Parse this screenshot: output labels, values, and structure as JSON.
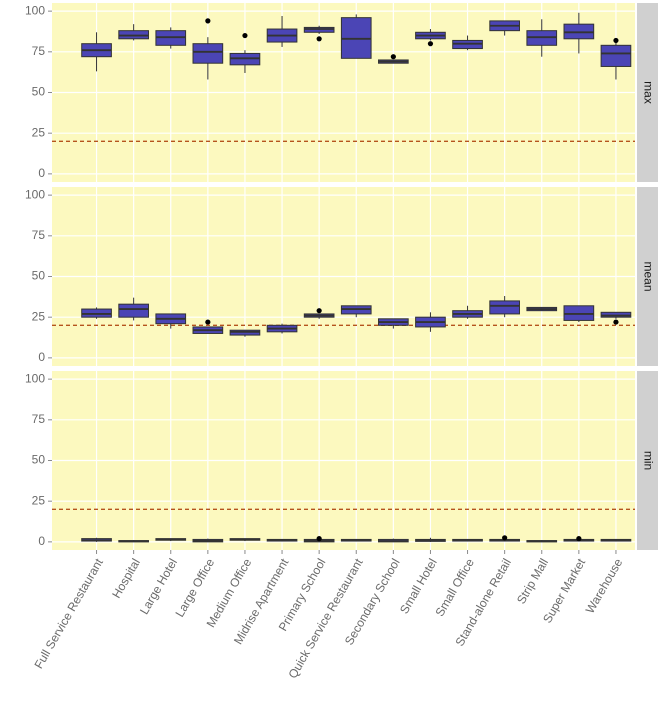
{
  "chart_data": {
    "type": "box",
    "categories": [
      "Full Service Restaurant",
      "Hospital",
      "Large Hotel",
      "Large Office",
      "Medium Office",
      "Midrise Apartment",
      "Primary School",
      "Quick Service Restaurant",
      "Secondary School",
      "Small Hotel",
      "Small Office",
      "Stand-alone Retail",
      "Strip Mall",
      "Super Market",
      "Warehouse"
    ],
    "ylim": [
      -5,
      105
    ],
    "yticks": [
      0,
      25,
      50,
      75,
      100
    ],
    "grid": true,
    "box_color": "#4b45b5",
    "reference_line": 20,
    "reference_color": "#b5541e",
    "facets": [
      {
        "label": "max",
        "boxes": [
          {
            "low": 63,
            "q1": 72,
            "median": 76,
            "q3": 80,
            "high": 87
          },
          {
            "low": 82,
            "q1": 83,
            "median": 85,
            "q3": 88,
            "high": 92
          },
          {
            "low": 77,
            "q1": 79,
            "median": 84,
            "q3": 88,
            "high": 90
          },
          {
            "low": 58,
            "q1": 68,
            "median": 75,
            "q3": 80,
            "high": 84,
            "outliers": [
              94
            ]
          },
          {
            "low": 62,
            "q1": 67,
            "median": 71,
            "q3": 74,
            "high": 76,
            "outliers": [
              85
            ]
          },
          {
            "low": 78,
            "q1": 81,
            "median": 85,
            "q3": 89,
            "high": 97
          },
          {
            "low": 86,
            "q1": 87,
            "median": 89,
            "q3": 90,
            "high": 91,
            "outliers": [
              83
            ]
          },
          {
            "low": 71,
            "q1": 71,
            "median": 83,
            "q3": 96,
            "high": 98
          },
          {
            "low": 68,
            "q1": 68,
            "median": 69,
            "q3": 70,
            "high": 70,
            "outliers": [
              72
            ]
          },
          {
            "low": 82,
            "q1": 83,
            "median": 85,
            "q3": 87,
            "high": 89,
            "outliers": [
              80
            ]
          },
          {
            "low": 76,
            "q1": 77,
            "median": 80,
            "q3": 82,
            "high": 85
          },
          {
            "low": 85,
            "q1": 88,
            "median": 91,
            "q3": 94,
            "high": 94
          },
          {
            "low": 72,
            "q1": 79,
            "median": 84,
            "q3": 88,
            "high": 95
          },
          {
            "low": 74,
            "q1": 83,
            "median": 87,
            "q3": 92,
            "high": 99
          },
          {
            "low": 58,
            "q1": 66,
            "median": 74,
            "q3": 79,
            "high": 81,
            "outliers": [
              82
            ]
          }
        ]
      },
      {
        "label": "mean",
        "boxes": [
          {
            "low": 24,
            "q1": 25,
            "median": 27,
            "q3": 30,
            "high": 31
          },
          {
            "low": 23,
            "q1": 25,
            "median": 30,
            "q3": 33,
            "high": 37
          },
          {
            "low": 18,
            "q1": 21,
            "median": 24,
            "q3": 27,
            "high": 27
          },
          {
            "low": 15,
            "q1": 15,
            "median": 17,
            "q3": 19,
            "high": 19,
            "outliers": [
              22
            ]
          },
          {
            "low": 13,
            "q1": 14,
            "median": 16,
            "q3": 17,
            "high": 17
          },
          {
            "low": 15,
            "q1": 16,
            "median": 18,
            "q3": 20,
            "high": 21
          },
          {
            "low": 24,
            "q1": 25,
            "median": 26,
            "q3": 27,
            "high": 27,
            "outliers": [
              29
            ]
          },
          {
            "low": 25,
            "q1": 27,
            "median": 30,
            "q3": 32,
            "high": 32
          },
          {
            "low": 18,
            "q1": 20,
            "median": 22,
            "q3": 24,
            "high": 24
          },
          {
            "low": 16,
            "q1": 19,
            "median": 22,
            "q3": 25,
            "high": 28
          },
          {
            "low": 24,
            "q1": 25,
            "median": 27,
            "q3": 29,
            "high": 32
          },
          {
            "low": 25,
            "q1": 27,
            "median": 32,
            "q3": 35,
            "high": 38
          },
          {
            "low": 29,
            "q1": 29,
            "median": 30,
            "q3": 31,
            "high": 31
          },
          {
            "low": 22,
            "q1": 23,
            "median": 27,
            "q3": 32,
            "high": 32
          },
          {
            "low": 24,
            "q1": 25,
            "median": 26,
            "q3": 28,
            "high": 28,
            "outliers": [
              22
            ]
          }
        ]
      },
      {
        "label": "min",
        "boxes": [
          {
            "low": 0,
            "q1": 0.5,
            "median": 1,
            "q3": 2,
            "high": 2.5
          },
          {
            "low": 0,
            "q1": 0,
            "median": 0.4,
            "q3": 0.8,
            "high": 1
          },
          {
            "low": 0.5,
            "q1": 1,
            "median": 1.5,
            "q3": 2,
            "high": 2
          },
          {
            "low": 0,
            "q1": 0,
            "median": 0.6,
            "q3": 1.5,
            "high": 2
          },
          {
            "low": 0.5,
            "q1": 1,
            "median": 1.5,
            "q3": 2,
            "high": 2
          },
          {
            "low": 0.3,
            "q1": 0.5,
            "median": 1,
            "q3": 1.5,
            "high": 1.7
          },
          {
            "low": 0,
            "q1": 0,
            "median": 0.8,
            "q3": 1.5,
            "high": 2,
            "outliers": [
              2
            ]
          },
          {
            "low": 0.3,
            "q1": 0.5,
            "median": 1,
            "q3": 1.5,
            "high": 1.7
          },
          {
            "low": 0,
            "q1": 0,
            "median": 0.5,
            "q3": 1.5,
            "high": 2
          },
          {
            "low": 0,
            "q1": 0.3,
            "median": 1,
            "q3": 1.5,
            "high": 2.5
          },
          {
            "low": 0.5,
            "q1": 0.5,
            "median": 1,
            "q3": 1.5,
            "high": 1.5
          },
          {
            "low": 0.5,
            "q1": 0.5,
            "median": 1,
            "q3": 1.5,
            "high": 2,
            "outliers": [
              2.5
            ]
          },
          {
            "low": 0,
            "q1": 0,
            "median": 0.4,
            "q3": 0.8,
            "high": 1
          },
          {
            "low": 0.5,
            "q1": 0.5,
            "median": 1,
            "q3": 1.5,
            "high": 2,
            "outliers": [
              2
            ]
          },
          {
            "low": 0.5,
            "q1": 0.5,
            "median": 1,
            "q3": 1.5,
            "high": 1.5
          }
        ]
      }
    ]
  }
}
